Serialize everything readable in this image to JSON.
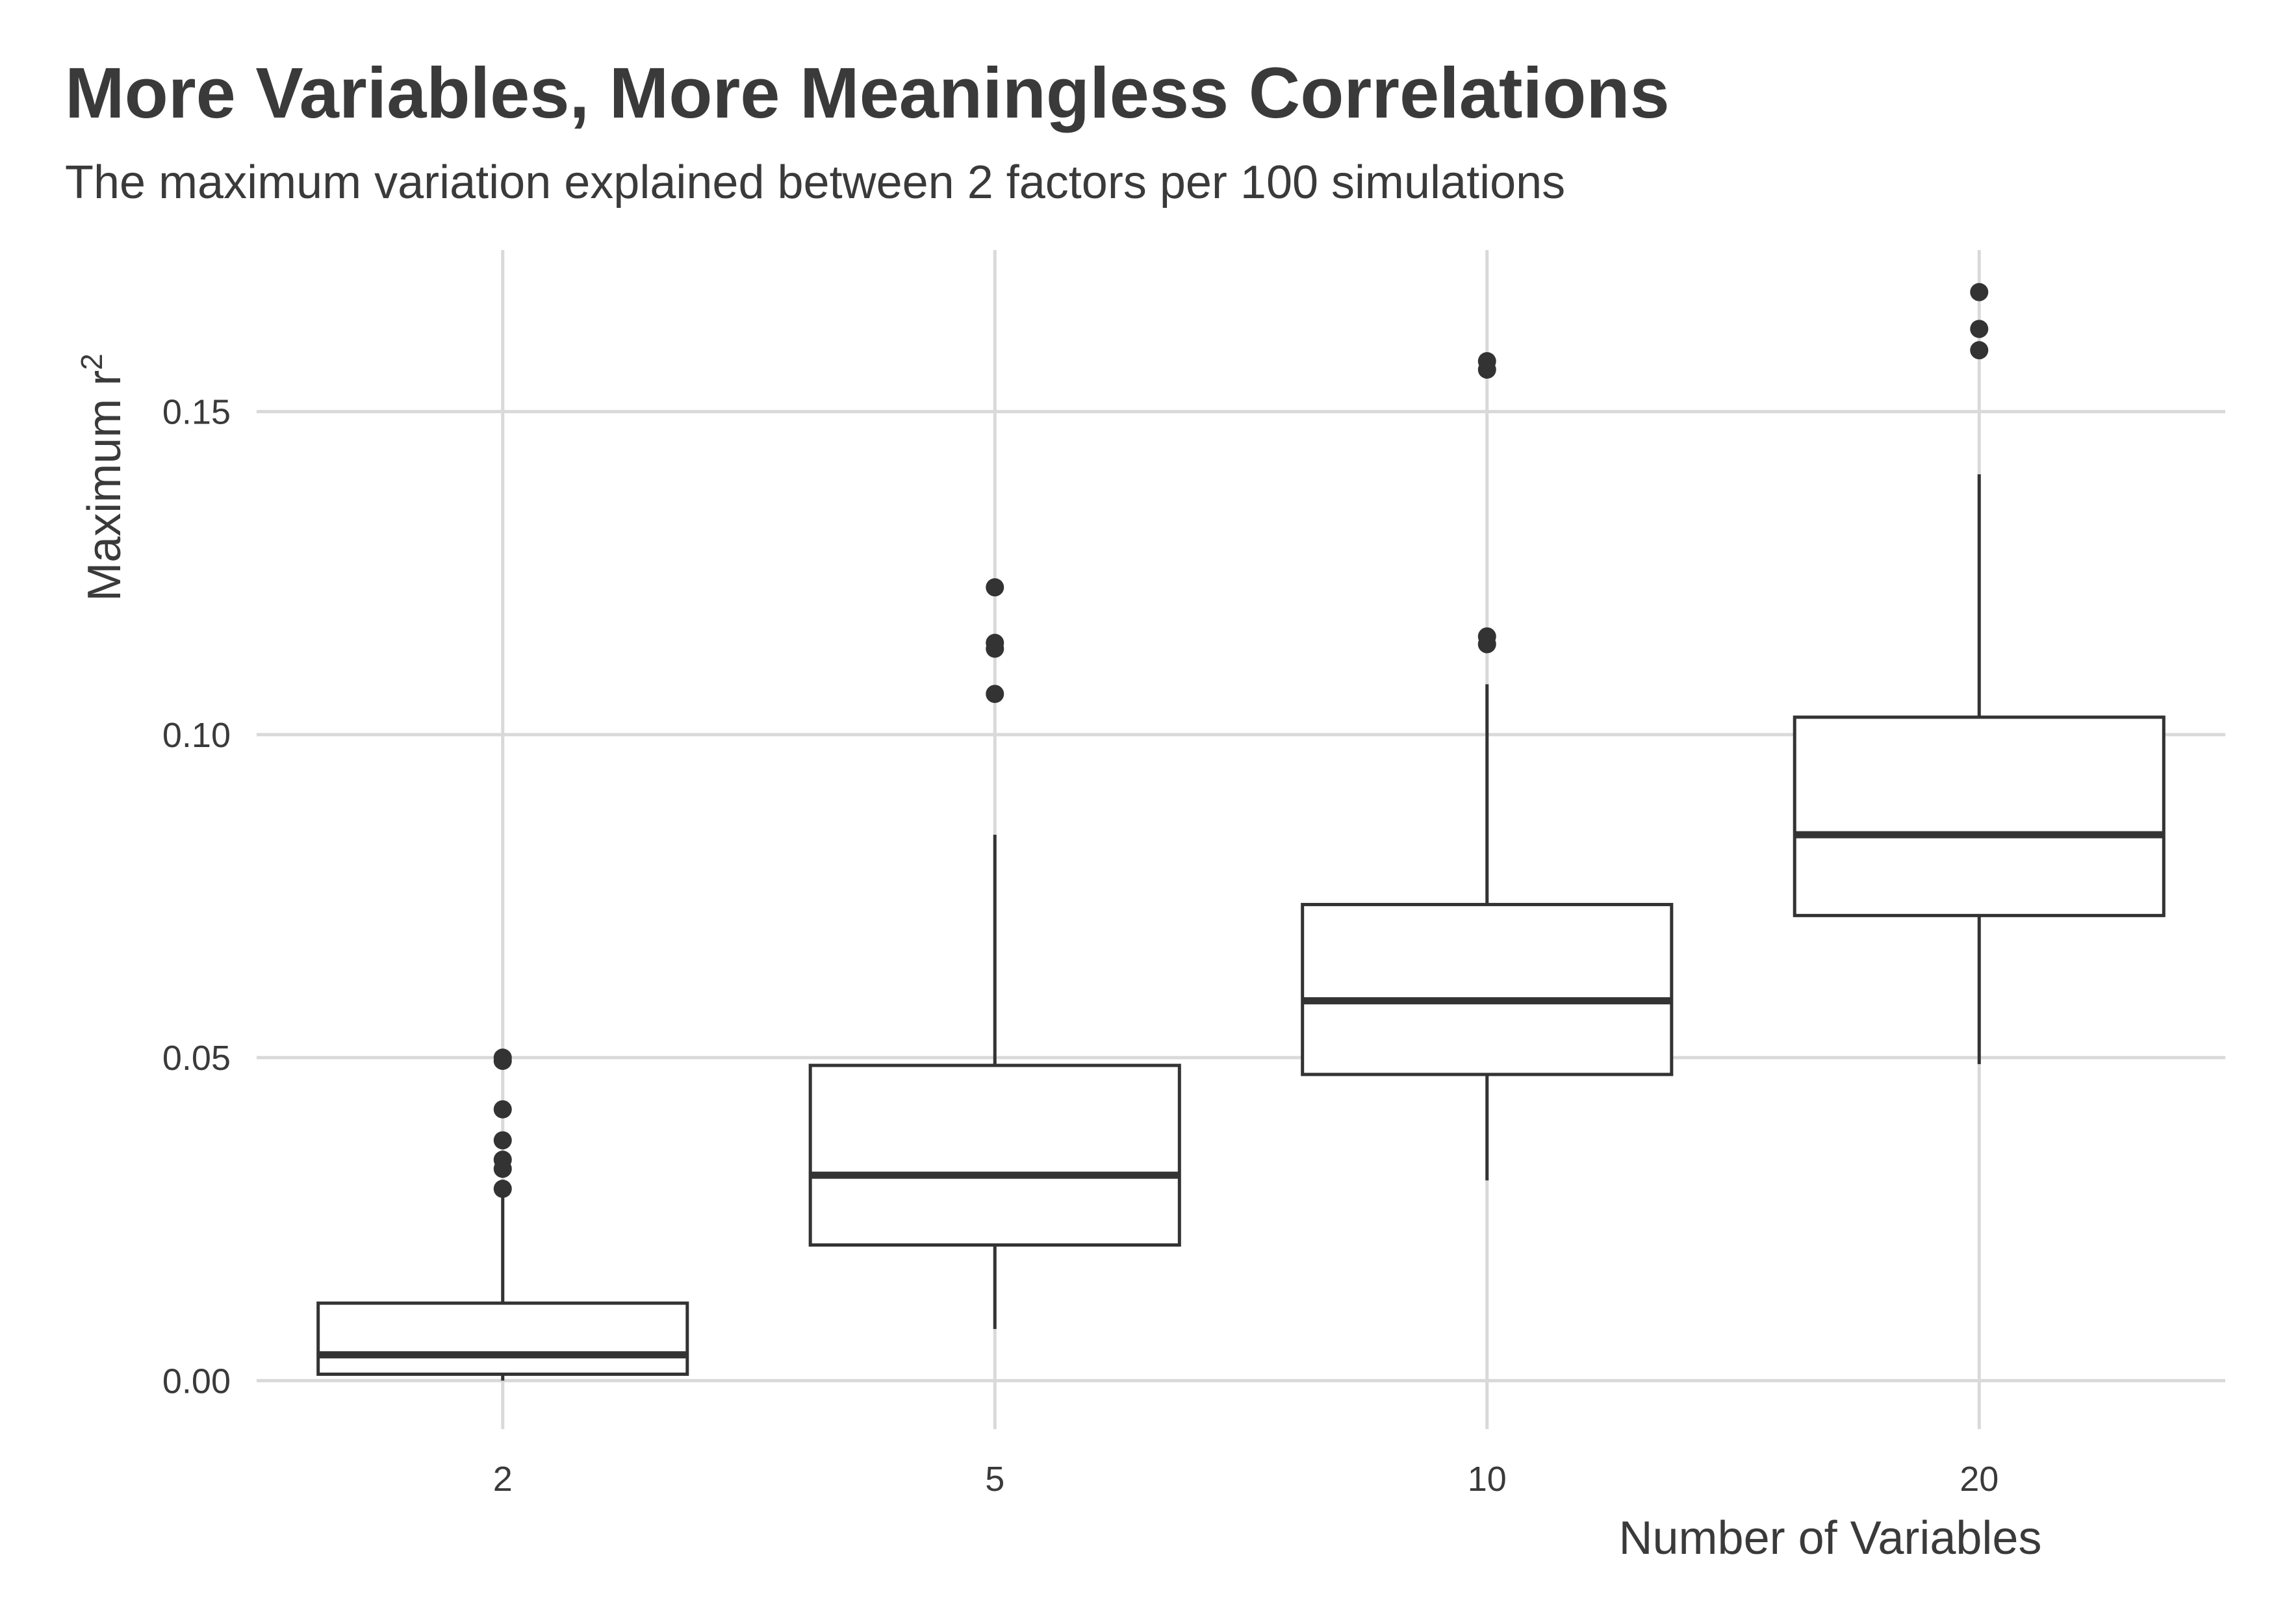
{
  "chart_data": {
    "type": "boxplot",
    "title": "More Variables, More Meaningless Correlations",
    "subtitle": "The maximum variation explained between 2 factors per 100 simulations",
    "xlabel": "Number of Variables",
    "ylabel": {
      "text": "Maximum r",
      "superscript": "2"
    },
    "categories": [
      "2",
      "5",
      "10",
      "20"
    ],
    "ylim": [
      -0.0075,
      0.175
    ],
    "yticks": [
      0.0,
      0.05,
      0.1,
      0.15
    ],
    "ytick_labels": [
      "0.00",
      "0.05",
      "0.10",
      "0.15"
    ],
    "grid": true,
    "legend": "none",
    "boxes": [
      {
        "category": "2",
        "whisker_low": 0.0,
        "q1": 0.001,
        "median": 0.004,
        "q3": 0.012,
        "whisker_high": 0.0285,
        "outliers": [
          0.0297,
          0.0328,
          0.0342,
          0.0372,
          0.042,
          0.0495,
          0.05
        ]
      },
      {
        "category": "5",
        "whisker_low": 0.008,
        "q1": 0.021,
        "median": 0.0318,
        "q3": 0.0488,
        "whisker_high": 0.0845,
        "outliers": [
          0.1063,
          0.1133,
          0.1142,
          0.1228
        ]
      },
      {
        "category": "10",
        "whisker_low": 0.031,
        "q1": 0.0474,
        "median": 0.0588,
        "q3": 0.0737,
        "whisker_high": 0.1078,
        "outliers": [
          0.114,
          0.1152,
          0.1565,
          0.1578
        ]
      },
      {
        "category": "20",
        "whisker_low": 0.049,
        "q1": 0.072,
        "median": 0.0845,
        "q3": 0.1027,
        "whisker_high": 0.1403,
        "outliers": [
          0.1595,
          0.1628,
          0.1685
        ]
      }
    ],
    "colors": {
      "box_stroke": "#333333",
      "box_fill": "#ffffff",
      "grid": "#d9d9d9",
      "outlier": "#333333",
      "text": "#3a3a3a"
    }
  }
}
